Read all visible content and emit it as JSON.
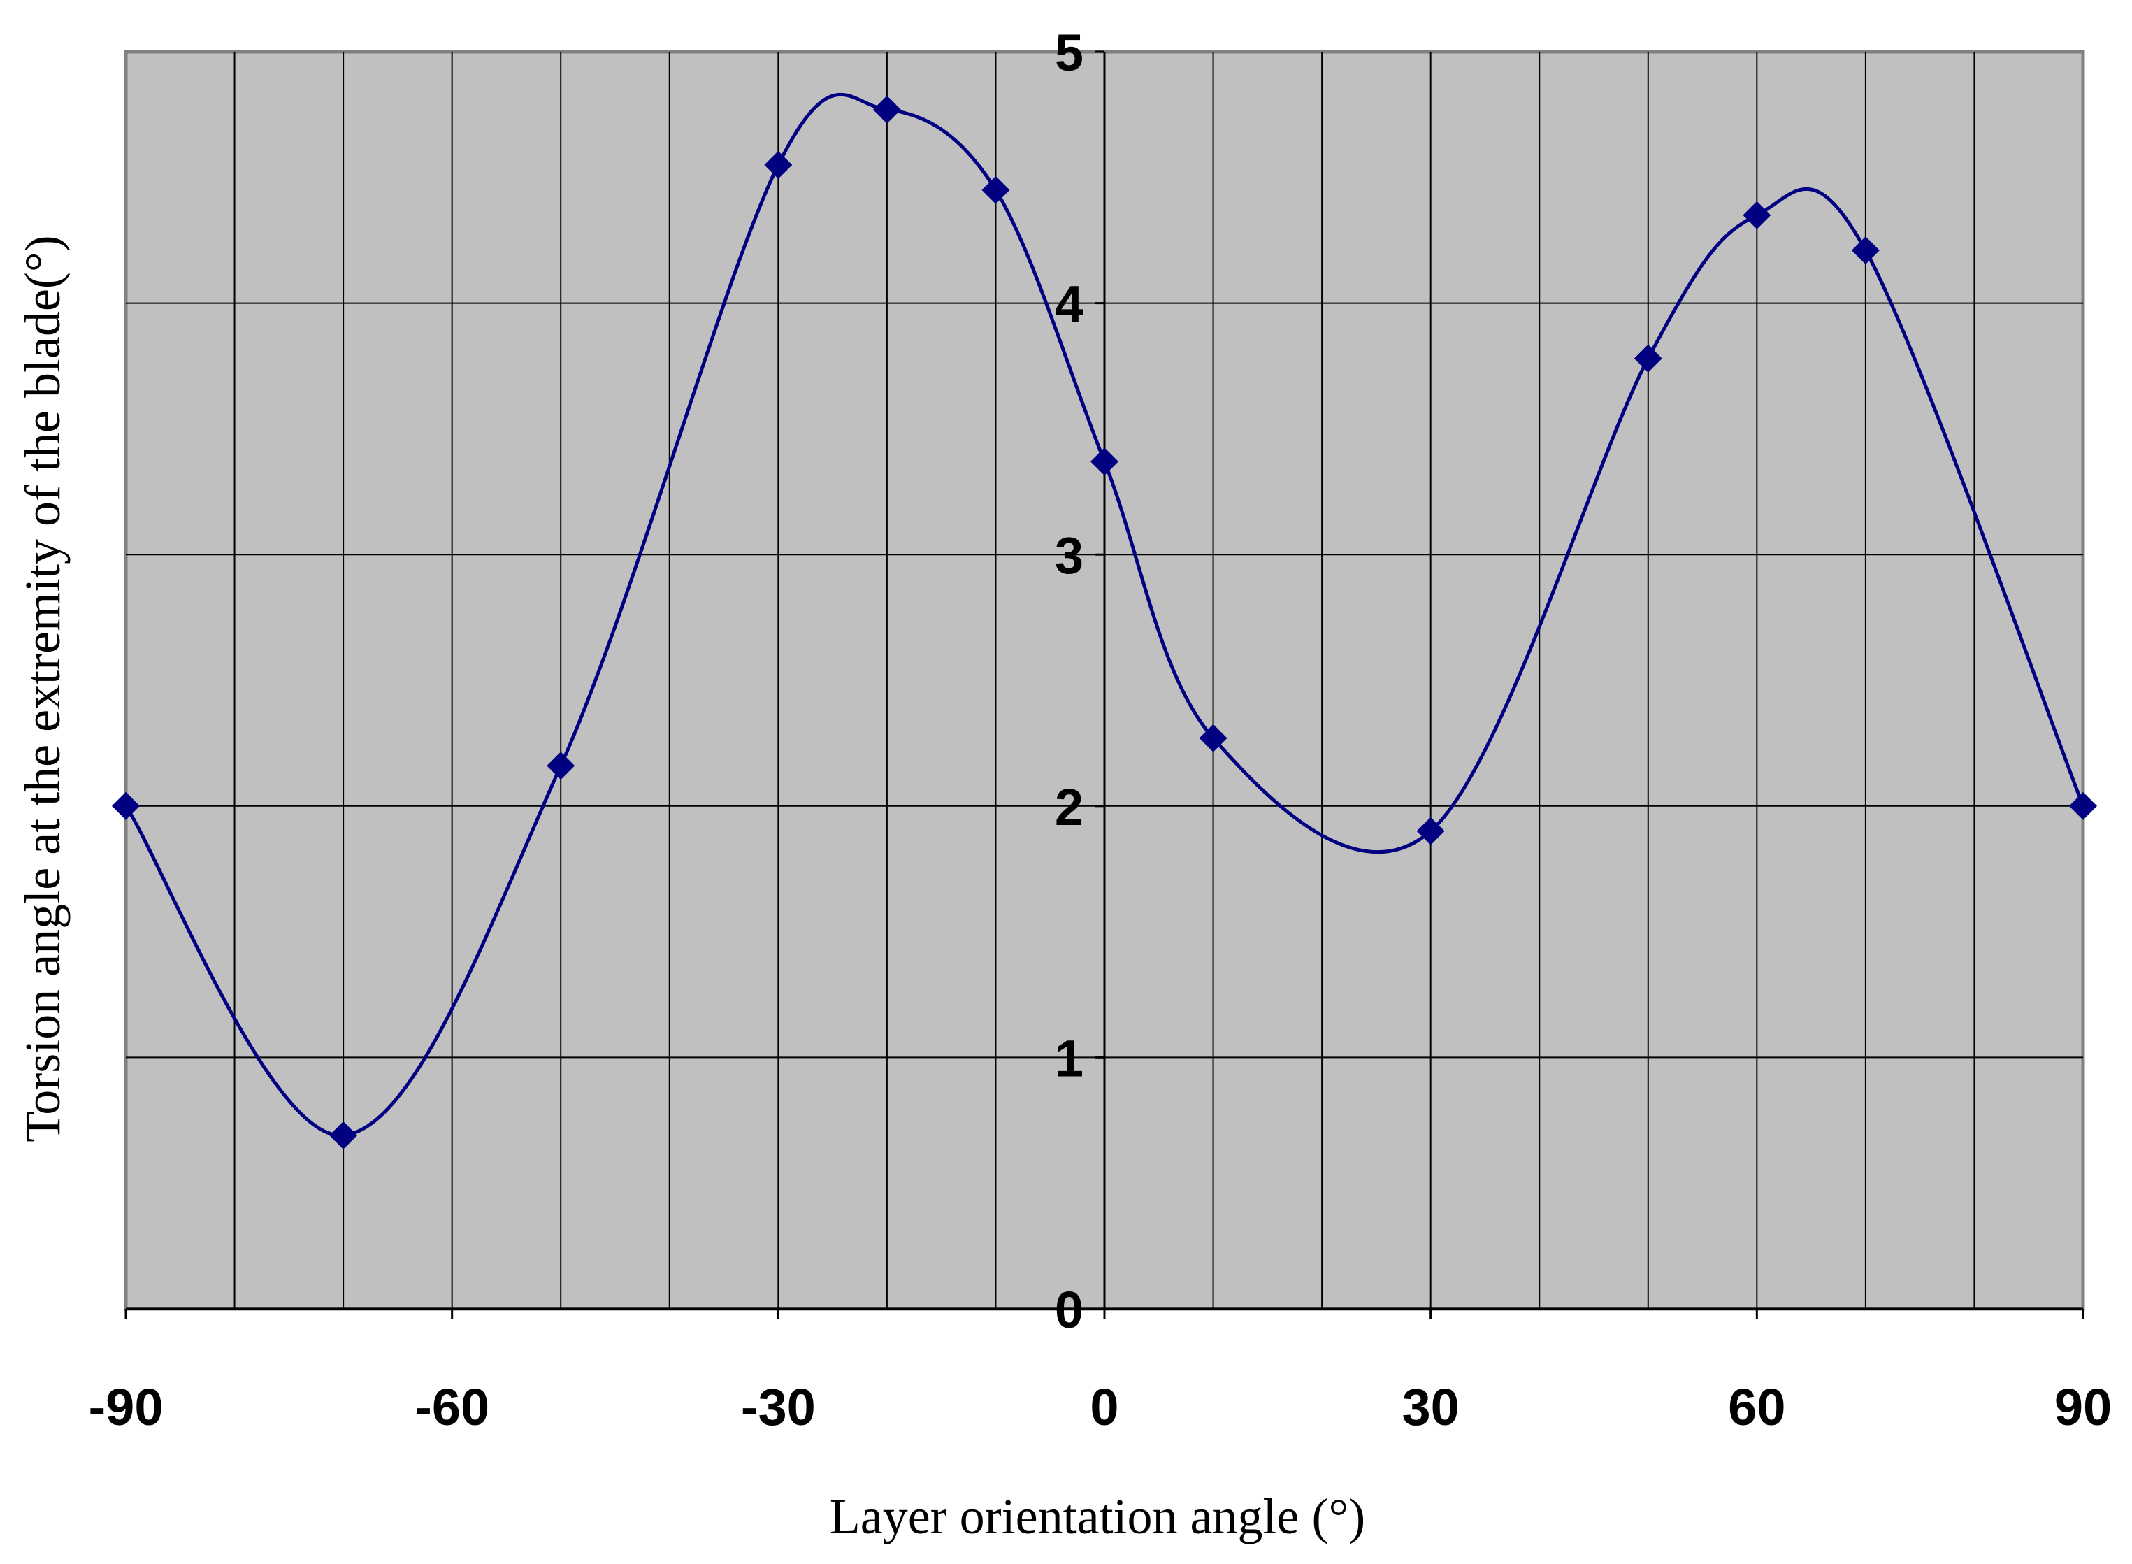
{
  "chart_data": {
    "type": "line",
    "xlabel": "Layer orientation angle (°)",
    "ylabel": "Torsion angle at the extremity of the blade(°)",
    "xlim": [
      -90,
      90
    ],
    "ylim": [
      0,
      5
    ],
    "x_ticks": [
      "-90",
      "-60",
      "-30",
      "0",
      "30",
      "60",
      "90"
    ],
    "y_ticks": [
      "0",
      "1",
      "2",
      "3",
      "4",
      "5"
    ],
    "x_minor_grid_step": 10,
    "grid": true,
    "smooth": true,
    "legend": "none",
    "series": [
      {
        "marker": "diamond",
        "x": [
          -90,
          -70,
          -50,
          -30,
          -20,
          -10,
          0,
          10,
          30,
          50,
          60,
          70,
          90
        ],
        "y": [
          2.0,
          0.69,
          2.16,
          4.55,
          4.77,
          4.45,
          3.37,
          2.27,
          1.9,
          3.78,
          4.35,
          4.21,
          2.0
        ]
      }
    ],
    "colors": {
      "plot_background": "#c0c0c0",
      "grid": "#000000",
      "series_line": "#000080",
      "marker": "#000080"
    }
  }
}
